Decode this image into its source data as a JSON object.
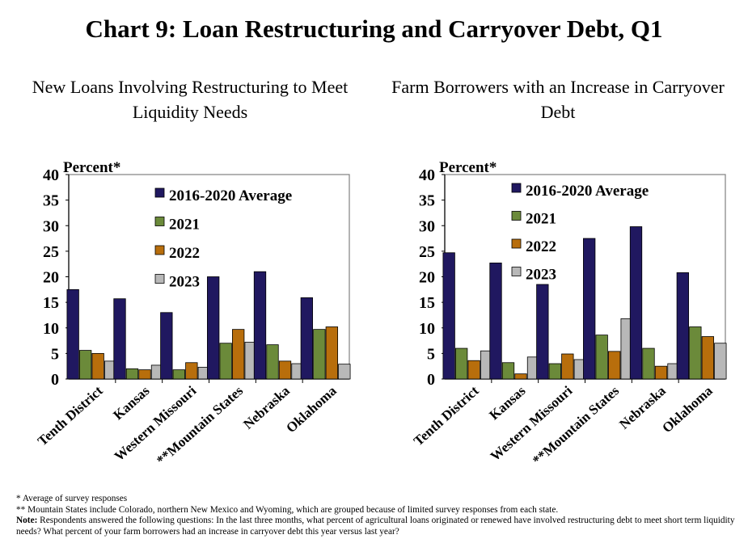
{
  "title": "Chart 9: Loan Restructuring and Carryover Debt, Q1",
  "colors": {
    "2016-2020 Average": "#201860",
    "2021": "#6b8a3a",
    "2022": "#b86e0c",
    "2023": "#b8b8b8"
  },
  "chart_data": [
    {
      "type": "bar",
      "title": "New Loans Involving Restructuring to Meet Liquidity Needs",
      "ylabel": "Percent*",
      "ylim": [
        0,
        40
      ],
      "yticks": [
        "0",
        "5",
        "10",
        "15",
        "20",
        "25",
        "30",
        "35",
        "40"
      ],
      "categories": [
        "Tenth District",
        "Kansas",
        "Western Missouri",
        "**Mountain States",
        "Nebraska",
        "Oklahoma"
      ],
      "legend": "top-right",
      "grid": false,
      "series": [
        {
          "name": "2016-2020 Average",
          "values": [
            17.5,
            15.7,
            13.0,
            20.0,
            21.0,
            15.9
          ]
        },
        {
          "name": "2021",
          "values": [
            5.6,
            2.0,
            1.8,
            7.0,
            6.7,
            9.7
          ]
        },
        {
          "name": "2022",
          "values": [
            5.0,
            1.8,
            3.2,
            9.7,
            3.5,
            10.2
          ]
        },
        {
          "name": "2023",
          "values": [
            3.5,
            2.7,
            2.3,
            7.2,
            3.0,
            2.9
          ]
        }
      ]
    },
    {
      "type": "bar",
      "title": "Farm Borrowers with an Increase in Carryover Debt",
      "ylabel": "Percent*",
      "ylim": [
        0,
        40
      ],
      "yticks": [
        "0",
        "5",
        "10",
        "15",
        "20",
        "25",
        "30",
        "35",
        "40"
      ],
      "categories": [
        "Tenth District",
        "Kansas",
        "Western Missouri",
        "**Mountain States",
        "Nebraska",
        "Oklahoma"
      ],
      "legend": "top-right",
      "grid": false,
      "series": [
        {
          "name": "2016-2020 Average",
          "values": [
            24.7,
            22.7,
            18.5,
            27.5,
            29.8,
            20.8
          ]
        },
        {
          "name": "2021",
          "values": [
            6.0,
            3.2,
            3.0,
            8.6,
            6.0,
            10.2
          ]
        },
        {
          "name": "2022",
          "values": [
            3.6,
            1.0,
            4.9,
            5.4,
            2.5,
            8.3
          ]
        },
        {
          "name": "2023",
          "values": [
            5.5,
            4.3,
            3.8,
            11.8,
            3.0,
            7.0
          ]
        }
      ]
    }
  ],
  "notes": {
    "n1": "* Average of survey responses",
    "n2": "** Mountain States include Colorado, northern New Mexico and Wyoming, which are grouped because of limited survey responses from each state.",
    "n3_label": "Note:",
    "n3": " Respondents answered the following questions: In the last three months, what percent of agricultural loans originated or renewed have involved restructuring debt to meet short term liquidity  needs? What percent of your farm borrowers had an increase in carryover debt this year versus last year?"
  }
}
